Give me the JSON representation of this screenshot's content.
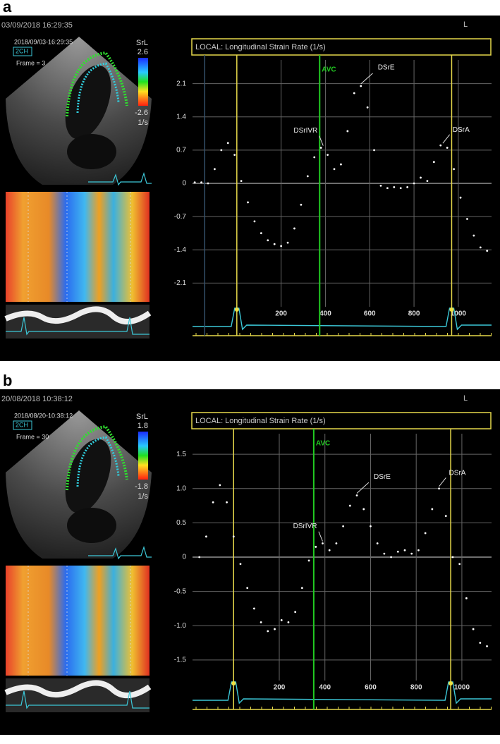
{
  "panels": [
    {
      "label": "a",
      "timestamp": "03/09/2018 16:29:35",
      "view": "L",
      "echo": {
        "timestamp": "2018/09/03-16:29:35",
        "view": "2CH",
        "frame": "Frame = 3",
        "scale_title": "SrL",
        "scale_max": "2.6",
        "scale_min": "-2.6",
        "scale_unit": "1/s"
      }
    },
    {
      "label": "b",
      "timestamp": "20/08/2018 10:38:12",
      "view": "L",
      "echo": {
        "timestamp": "2018/08/20-10:38:12",
        "view": "2CH",
        "frame": "Frame = 30",
        "scale_title": "SrL",
        "scale_max": "1.8",
        "scale_min": "-1.8",
        "scale_unit": "1/s"
      }
    }
  ],
  "chart_data": [
    {
      "type": "scatter",
      "title": "LOCAL: Longitudinal Strain Rate (1/s)",
      "color": "#ffffff",
      "x": [
        -190,
        -160,
        -130,
        -100,
        -70,
        -40,
        -10,
        20,
        50,
        80,
        110,
        140,
        170,
        200,
        230,
        260,
        290,
        320,
        350,
        380,
        410,
        440,
        470,
        500,
        530,
        560,
        590,
        620,
        650,
        680,
        710,
        740,
        770,
        800,
        830,
        860,
        890,
        920,
        950,
        980,
        1010,
        1040,
        1070,
        1100,
        1130
      ],
      "values": [
        0.02,
        0.02,
        0.0,
        0.3,
        0.7,
        0.85,
        0.6,
        0.05,
        -0.4,
        -0.8,
        -1.05,
        -1.2,
        -1.28,
        -1.32,
        -1.25,
        -0.95,
        -0.45,
        0.15,
        0.55,
        0.75,
        0.6,
        0.3,
        0.4,
        1.1,
        1.9,
        2.05,
        1.6,
        0.7,
        -0.05,
        -0.1,
        -0.08,
        -0.1,
        -0.08,
        0.0,
        0.12,
        0.05,
        0.45,
        0.8,
        0.75,
        0.3,
        -0.3,
        -0.75,
        -1.1,
        -1.35,
        -1.42
      ],
      "xlim": [
        -200,
        1150
      ],
      "ylim": [
        -2.6,
        2.6
      ],
      "xticks": [
        200,
        400,
        600,
        800,
        1000
      ],
      "yticks": [
        2.1,
        1.4,
        0.7,
        0,
        -0.7,
        -1.4,
        -2.1
      ],
      "grid": true,
      "event_lines": [
        {
          "x": -145,
          "color": "#34506a"
        },
        {
          "x": 0,
          "color": "#e6d84a"
        },
        {
          "x": 970,
          "color": "#e6d84a"
        }
      ],
      "markers": [
        {
          "label": "AVC",
          "x": 374,
          "color": "#22cc22"
        }
      ],
      "annotations": [
        {
          "text": "DSrIVR",
          "x": 390,
          "y": 0.75
        },
        {
          "text": "DSrE",
          "x": 560,
          "y": 2.05
        },
        {
          "text": "DSrA",
          "x": 930,
          "y": 0.8
        }
      ]
    },
    {
      "type": "scatter",
      "title": "LOCAL: Longitudinal Strain Rate (1/s)",
      "color": "#ffffff",
      "x": [
        -150,
        -120,
        -90,
        -60,
        -30,
        0,
        30,
        60,
        90,
        120,
        150,
        180,
        210,
        240,
        270,
        300,
        330,
        360,
        390,
        420,
        450,
        480,
        510,
        540,
        570,
        600,
        630,
        660,
        690,
        720,
        750,
        780,
        810,
        840,
        870,
        900,
        930,
        960,
        990,
        1020,
        1050,
        1080,
        1110
      ],
      "values": [
        0.0,
        0.3,
        0.8,
        1.05,
        0.8,
        0.3,
        -0.1,
        -0.45,
        -0.75,
        -0.95,
        -1.08,
        -1.05,
        -0.92,
        -0.95,
        -0.8,
        -0.45,
        -0.05,
        0.15,
        0.2,
        0.1,
        0.2,
        0.45,
        0.75,
        0.9,
        0.7,
        0.45,
        0.2,
        0.05,
        0.0,
        0.08,
        0.1,
        0.05,
        0.1,
        0.35,
        0.7,
        1.0,
        0.6,
        0.0,
        -0.1,
        -0.6,
        -1.05,
        -1.25,
        -1.3
      ],
      "xlim": [
        -180,
        1130
      ],
      "ylim": [
        -1.8,
        1.8
      ],
      "xticks": [
        200,
        400,
        600,
        800,
        1000
      ],
      "yticks": [
        1.5,
        {
          "value": 1,
          "label": "1.0"
        },
        0.5,
        0,
        -0.5,
        {
          "value": -1,
          "label": "-1.0"
        },
        -1.5
      ],
      "grid": true,
      "event_lines": [
        {
          "x": 0,
          "color": "#e6d84a"
        },
        {
          "x": 951,
          "color": "#e6d84a"
        }
      ],
      "markers": [
        {
          "label": "AVC",
          "x": 351,
          "color": "#22cc22"
        }
      ],
      "annotations": [
        {
          "text": "DSrIVR",
          "x": 390,
          "y": 0.2
        },
        {
          "text": "DSrE",
          "x": 540,
          "y": 0.9
        },
        {
          "text": "DSrA",
          "x": 900,
          "y": 1.0
        }
      ]
    }
  ]
}
